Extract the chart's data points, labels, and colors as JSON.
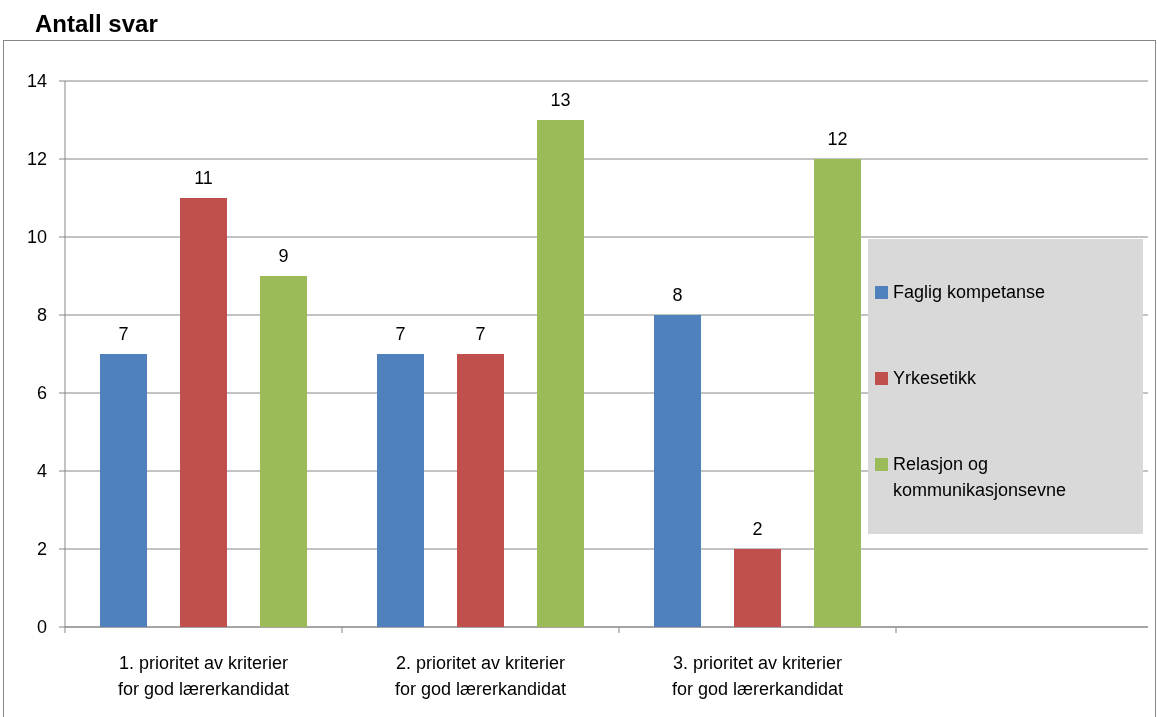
{
  "chart_data": {
    "type": "bar",
    "title": "Antall svar",
    "categories": [
      "1. prioritet  av kriterier for god lærerkandidat",
      "2. prioritet av kriterier for god lærerkandidat",
      "3. prioritet av kriterier for god lærerkandidat"
    ],
    "series": [
      {
        "name": "Faglig kompetanse",
        "color": "#4f81bd",
        "values": [
          7,
          7,
          8
        ]
      },
      {
        "name": "Yrkesetikk",
        "color": "#c0504d",
        "values": [
          11,
          7,
          2
        ]
      },
      {
        "name": "Relasjon og kommunikasjonsevne",
        "color": "#9bbb59",
        "values": [
          9,
          13,
          12
        ]
      }
    ],
    "ylim": [
      0,
      14
    ],
    "yticks": [
      0,
      2,
      4,
      6,
      8,
      10,
      12,
      14
    ],
    "grid": "y",
    "legend": "right",
    "data_labels": true
  }
}
